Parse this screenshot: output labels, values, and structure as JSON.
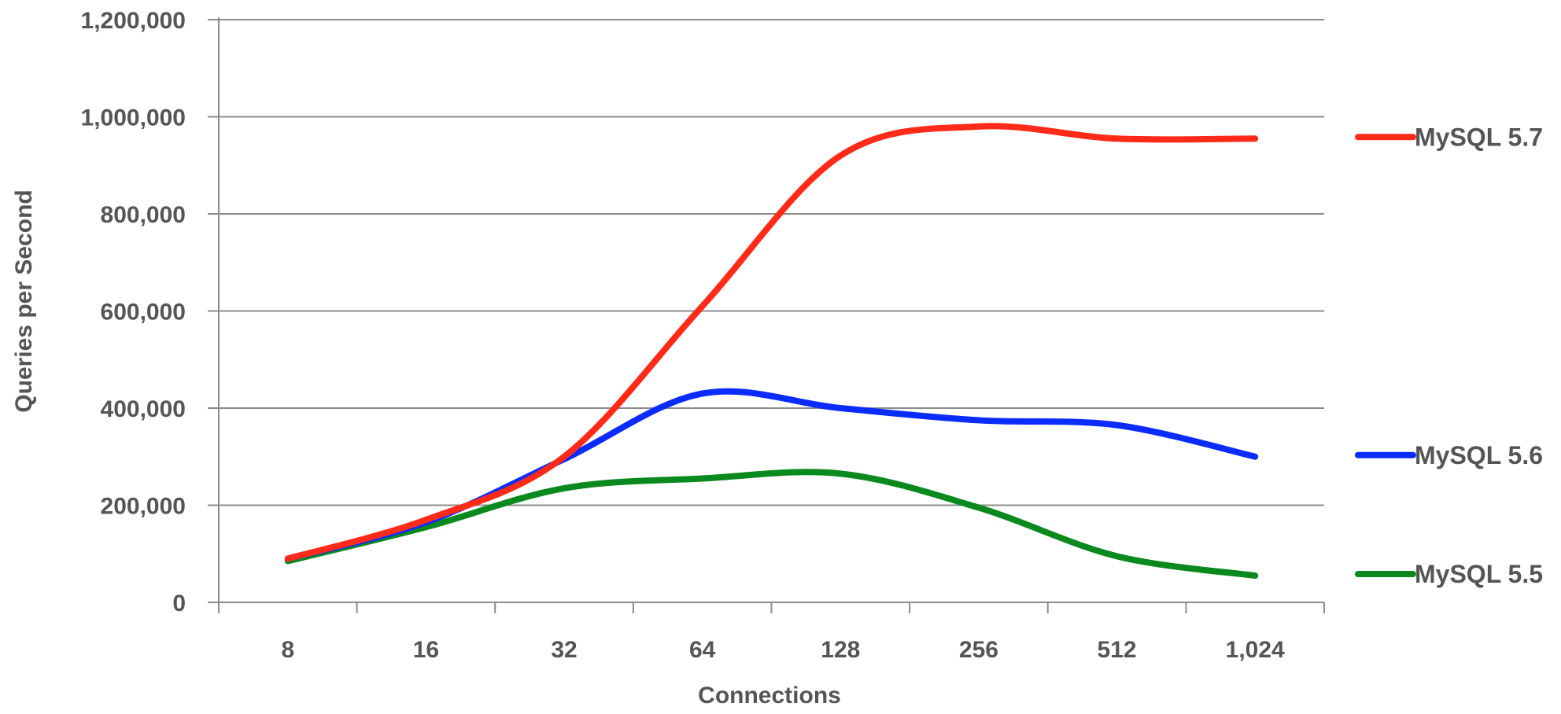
{
  "chart_data": {
    "type": "line",
    "title": "",
    "xlabel": "Connections",
    "ylabel": "Queries per Second",
    "categories": [
      "8",
      "16",
      "32",
      "64",
      "128",
      "256",
      "512",
      "1,024"
    ],
    "x_scale": "log2",
    "ylim": [
      0,
      1200000
    ],
    "yticks": [
      0,
      200000,
      400000,
      600000,
      800000,
      1000000,
      1200000
    ],
    "ytick_labels": [
      "0",
      "200,000",
      "400,000",
      "600,000",
      "800,000",
      "1,000,000",
      "1,200,000"
    ],
    "grid": true,
    "legend_position": "right",
    "series": [
      {
        "name": "MySQL 5.7",
        "color": "#ff2a17",
        "values": [
          90000,
          170000,
          300000,
          610000,
          920000,
          980000,
          955000,
          955000
        ]
      },
      {
        "name": "MySQL 5.6",
        "color": "#0b2cff",
        "values": [
          90000,
          165000,
          295000,
          430000,
          400000,
          375000,
          365000,
          300000
        ]
      },
      {
        "name": "MySQL 5.5",
        "color": "#0a8a1e",
        "values": [
          85000,
          155000,
          235000,
          255000,
          265000,
          195000,
          95000,
          55000
        ]
      }
    ]
  }
}
